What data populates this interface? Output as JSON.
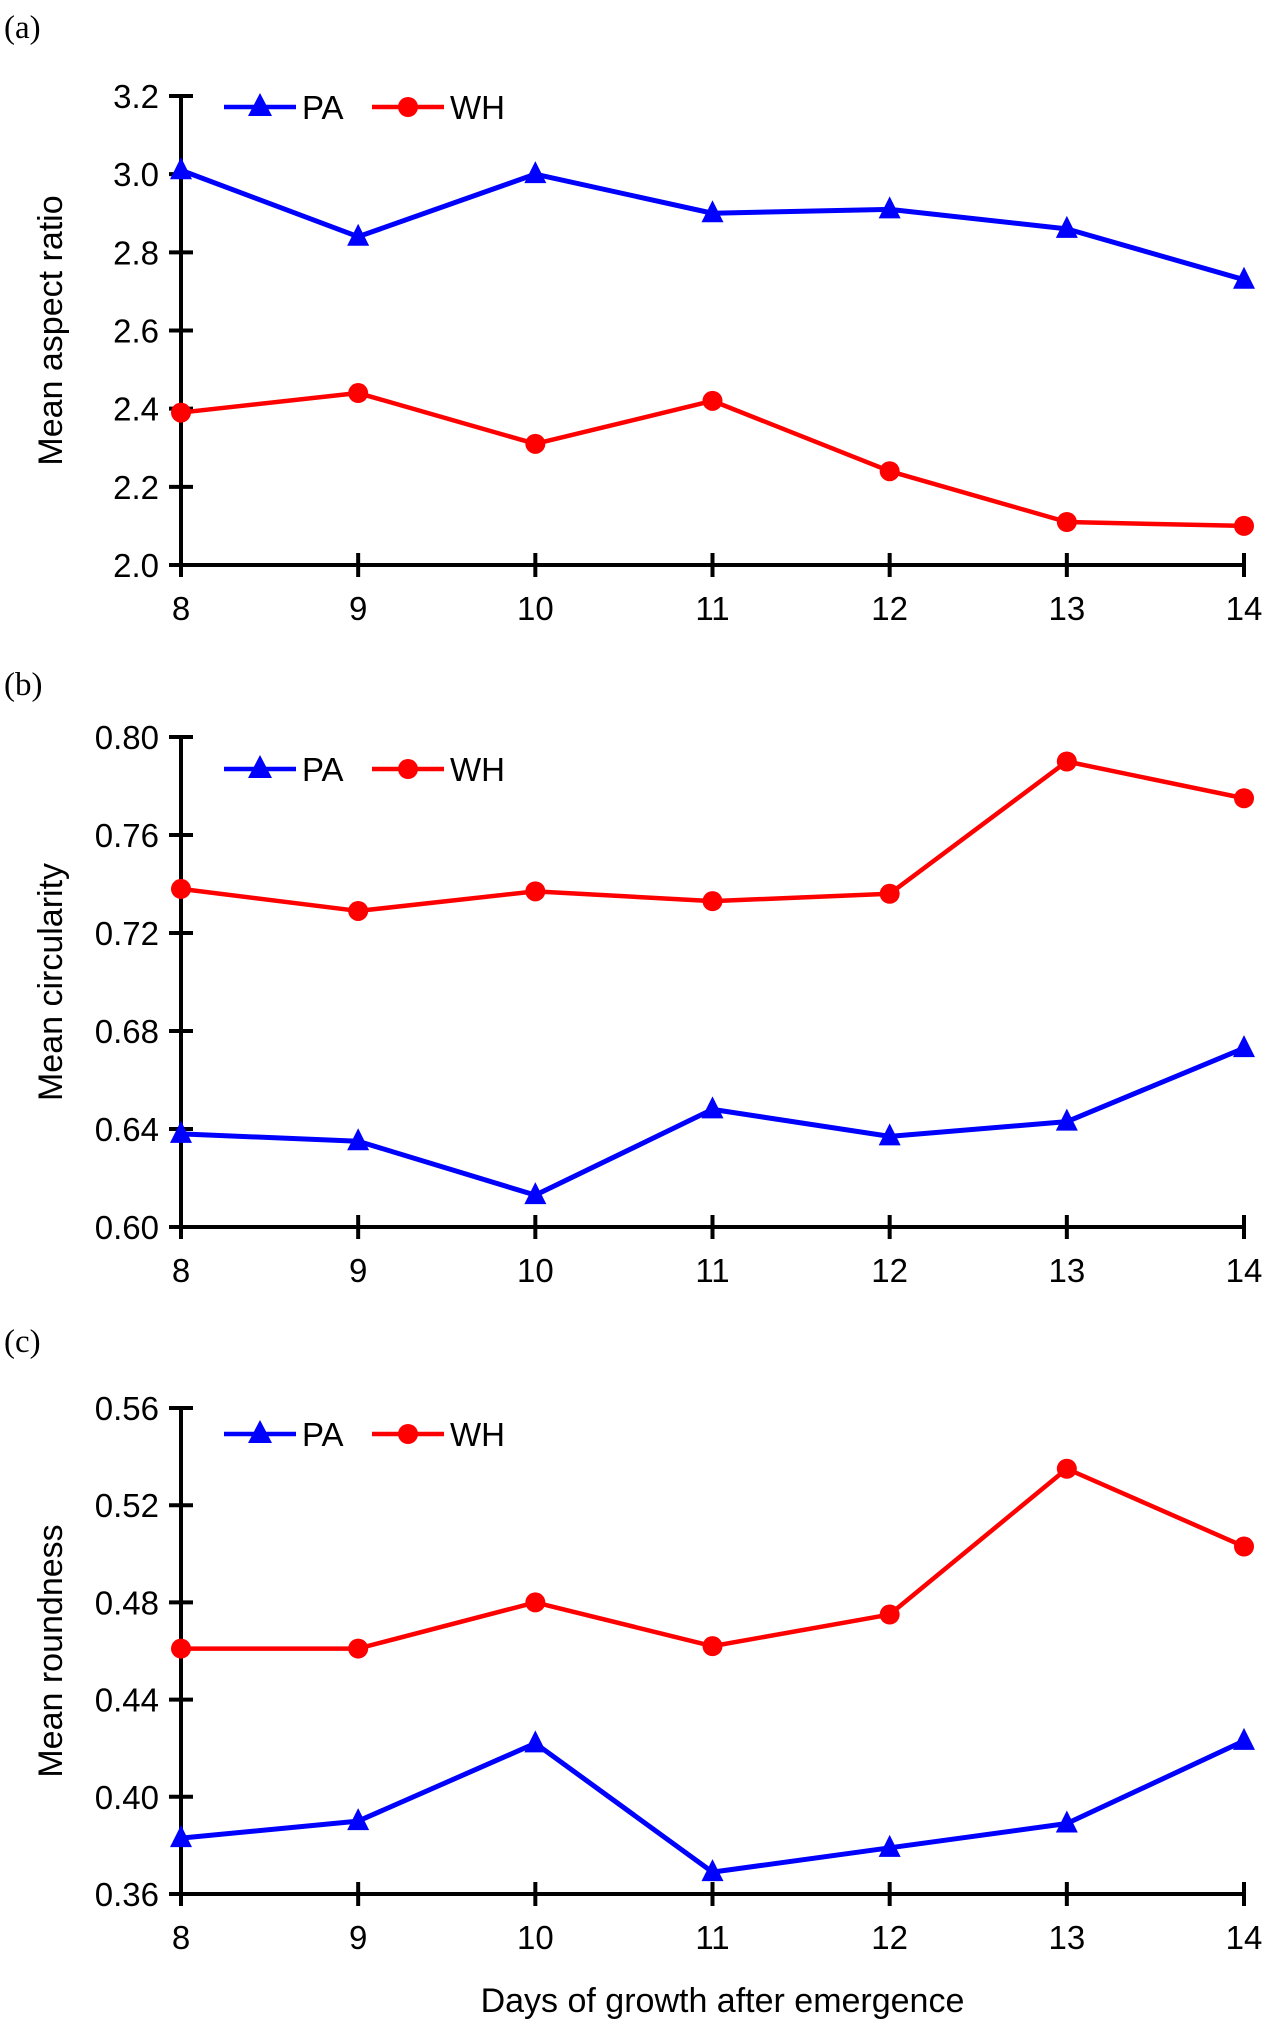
{
  "chart_data": [
    {
      "type": "line",
      "panel_label": "(a)",
      "title": "",
      "xlabel": "",
      "ylabel": "Mean aspect ratio",
      "x": [
        8,
        9,
        10,
        11,
        12,
        13,
        14
      ],
      "x_tick_labels": [
        "8",
        "9",
        "10",
        "11",
        "12",
        "13",
        "14"
      ],
      "ylim": [
        2.0,
        3.2
      ],
      "y_ticks": [
        2.0,
        2.2,
        2.4,
        2.6,
        2.8,
        3.0,
        3.2
      ],
      "y_tick_labels": [
        "2.0",
        "2.2",
        "2.4",
        "2.6",
        "2.8",
        "3.0",
        "3.2"
      ],
      "grid": false,
      "legend_placement": "top-left",
      "series": [
        {
          "name": "PA",
          "color": "#0000ff",
          "marker": "triangle",
          "values": [
            3.01,
            2.84,
            3.0,
            2.9,
            2.91,
            2.86,
            2.73
          ]
        },
        {
          "name": "WH",
          "color": "#ff0000",
          "marker": "circle",
          "values": [
            2.39,
            2.44,
            2.31,
            2.42,
            2.24,
            2.11,
            2.1
          ]
        }
      ]
    },
    {
      "type": "line",
      "panel_label": "(b)",
      "title": "",
      "xlabel": "",
      "ylabel": "Mean circularity",
      "x": [
        8,
        9,
        10,
        11,
        12,
        13,
        14
      ],
      "x_tick_labels": [
        "8",
        "9",
        "10",
        "11",
        "12",
        "13",
        "14"
      ],
      "ylim": [
        0.6,
        0.8
      ],
      "y_ticks": [
        0.6,
        0.64,
        0.68,
        0.72,
        0.76,
        0.8
      ],
      "y_tick_labels": [
        "0.60",
        "0.64",
        "0.68",
        "0.72",
        "0.76",
        "0.80"
      ],
      "grid": false,
      "legend_placement": "top-left",
      "series": [
        {
          "name": "PA",
          "color": "#0000ff",
          "marker": "triangle",
          "values": [
            0.638,
            0.635,
            0.613,
            0.648,
            0.637,
            0.643,
            0.673
          ]
        },
        {
          "name": "WH",
          "color": "#ff0000",
          "marker": "circle",
          "values": [
            0.738,
            0.729,
            0.737,
            0.733,
            0.736,
            0.79,
            0.775
          ]
        }
      ]
    },
    {
      "type": "line",
      "panel_label": "(c)",
      "title": "",
      "xlabel": "Days of growth after emergence",
      "ylabel": "Mean roundness",
      "x": [
        8,
        9,
        10,
        11,
        12,
        13,
        14
      ],
      "x_tick_labels": [
        "8",
        "9",
        "10",
        "11",
        "12",
        "13",
        "14"
      ],
      "ylim": [
        0.36,
        0.56
      ],
      "y_ticks": [
        0.36,
        0.4,
        0.44,
        0.48,
        0.52,
        0.56
      ],
      "y_tick_labels": [
        "0.36",
        "0.40",
        "0.44",
        "0.48",
        "0.52",
        "0.56"
      ],
      "grid": false,
      "legend_placement": "top-left",
      "series": [
        {
          "name": "PA",
          "color": "#0000ff",
          "marker": "triangle",
          "values": [
            0.383,
            0.39,
            0.422,
            0.369,
            0.379,
            0.389,
            0.423
          ]
        },
        {
          "name": "WH",
          "color": "#ff0000",
          "marker": "circle",
          "values": [
            0.461,
            0.461,
            0.48,
            0.462,
            0.475,
            0.535,
            0.503
          ]
        }
      ]
    }
  ]
}
